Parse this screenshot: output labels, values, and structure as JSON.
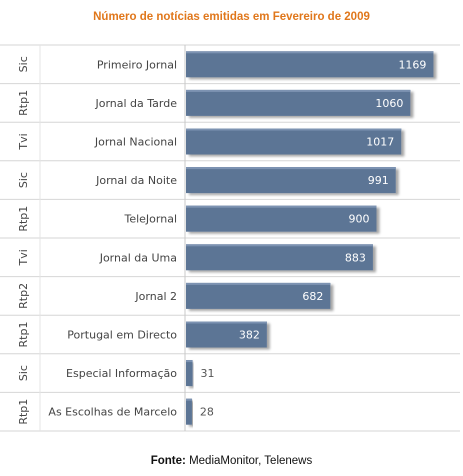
{
  "chart_data": {
    "type": "bar",
    "orientation": "horizontal",
    "title": "Número de notícias emitidas em Fevereiro de 2009",
    "categories": [
      "Primeiro Jornal",
      "Jornal da Tarde",
      "Jornal Nacional",
      "Jornal da Noite",
      "TeleJornal",
      "Jornal da Uma",
      "Jornal 2",
      "Portugal em Directo",
      "Especial Informação",
      "As Escolhas de Marcelo"
    ],
    "channels": [
      "Sic",
      "Rtp1",
      "Tvi",
      "Sic",
      "Rtp1",
      "Tvi",
      "Rtp2",
      "Rtp1",
      "Sic",
      "Rtp1"
    ],
    "values": [
      1169,
      1060,
      1017,
      991,
      900,
      883,
      682,
      382,
      31,
      28
    ],
    "xlim": [
      0,
      1200
    ],
    "bar_color": "#5c7495",
    "grid": false,
    "legend": "none"
  },
  "source": {
    "label": "Fonte:",
    "text": "MediaMonitor, Telenews"
  }
}
